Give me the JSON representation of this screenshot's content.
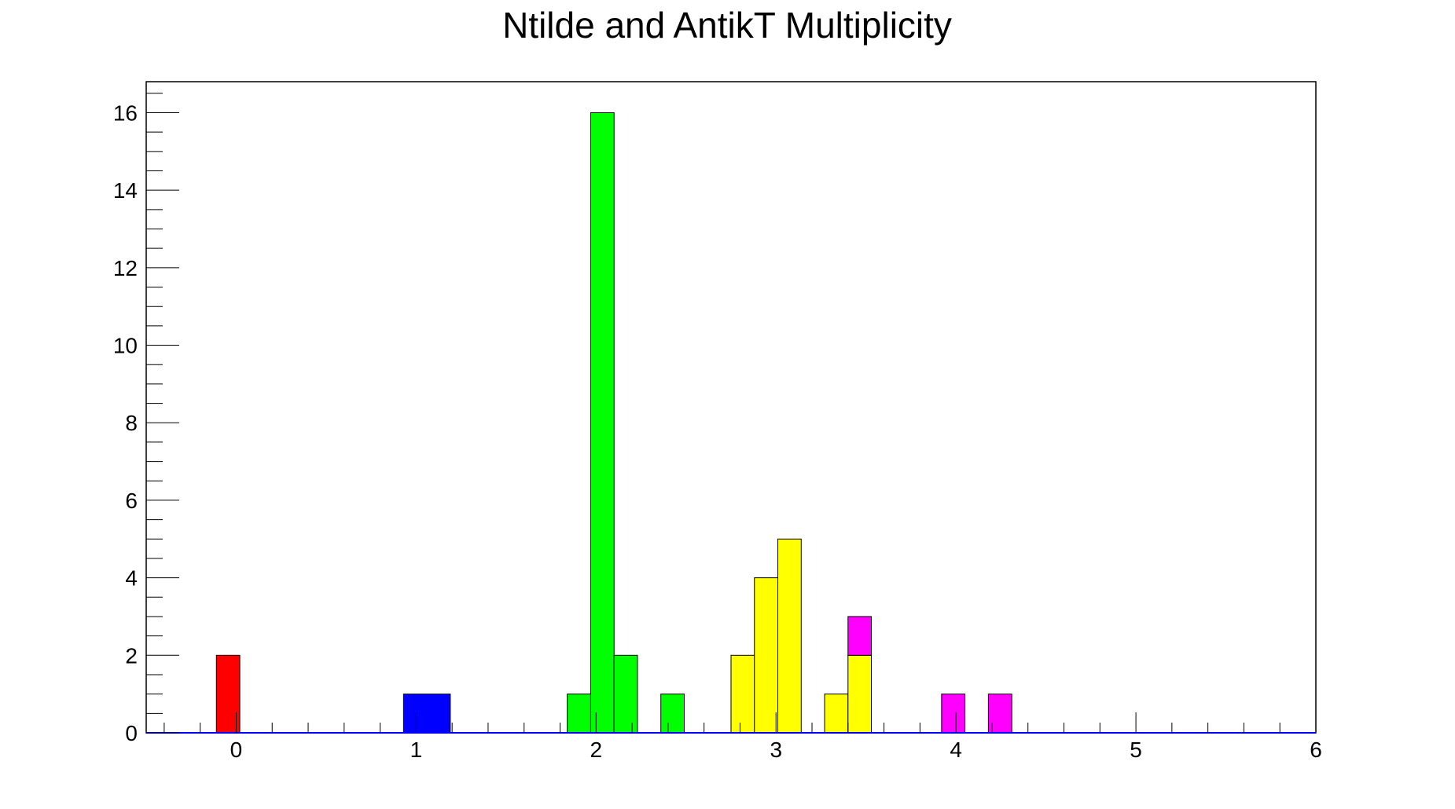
{
  "chart_data": {
    "type": "bar",
    "title": "Ntilde and AntikT Multiplicity",
    "xlabel": "",
    "ylabel": "",
    "xlim": [
      -0.5,
      6
    ],
    "ylim": [
      0,
      16.8
    ],
    "bin_width": 0.13,
    "grid": false,
    "legend": "none",
    "x_ticks": [
      0,
      1,
      2,
      3,
      4,
      5,
      6
    ],
    "y_ticks": [
      0,
      2,
      4,
      6,
      8,
      10,
      12,
      14,
      16
    ],
    "series": [
      {
        "color": "#ff0000",
        "bins": [
          {
            "x0": -0.11,
            "x1": 0.02,
            "y": 2
          }
        ]
      },
      {
        "color": "#0000ff",
        "bins": [
          {
            "x0": 0.93,
            "x1": 1.19,
            "y": 1
          }
        ]
      },
      {
        "color": "#00ff00",
        "bins": [
          {
            "x0": 1.84,
            "x1": 1.97,
            "y": 1
          },
          {
            "x0": 1.97,
            "x1": 2.1,
            "y": 16
          },
          {
            "x0": 2.1,
            "x1": 2.23,
            "y": 2
          },
          {
            "x0": 2.36,
            "x1": 2.49,
            "y": 1
          }
        ]
      },
      {
        "color": "#ffff00",
        "bins": [
          {
            "x0": 2.75,
            "x1": 2.88,
            "y": 2
          },
          {
            "x0": 2.88,
            "x1": 3.01,
            "y": 4
          },
          {
            "x0": 3.01,
            "x1": 3.14,
            "y": 5
          },
          {
            "x0": 3.27,
            "x1": 3.4,
            "y": 1
          },
          {
            "x0": 3.4,
            "x1": 3.53,
            "y": 2
          }
        ]
      },
      {
        "color": "#ff00ff",
        "bins": [
          {
            "x0": 3.4,
            "x1": 3.53,
            "y0": 2,
            "y": 3
          },
          {
            "x0": 3.92,
            "x1": 4.05,
            "y": 1
          },
          {
            "x0": 4.18,
            "x1": 4.31,
            "y": 1
          }
        ]
      }
    ]
  }
}
